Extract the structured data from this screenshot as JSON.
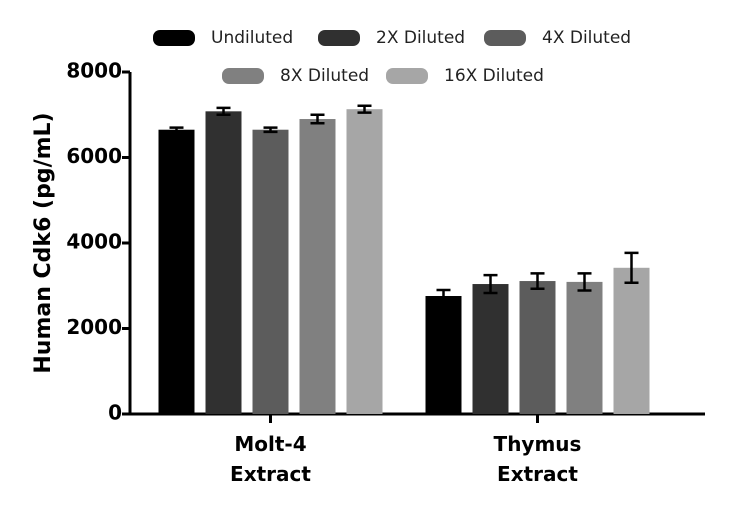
{
  "chart_data": {
    "type": "bar",
    "y_label": "Human Cdk6 (pg/mL)",
    "categories": [
      "Molt-4\nExtract",
      "Thymus\nExtract"
    ],
    "series": [
      {
        "name": "Undiluted",
        "color": "#000000",
        "values": [
          6650,
          2760
        ],
        "errors": [
          50,
          140
        ]
      },
      {
        "name": "2X Diluted",
        "color": "#303030",
        "values": [
          7080,
          3040
        ],
        "errors": [
          80,
          210
        ]
      },
      {
        "name": "4X Diluted",
        "color": "#5c5c5c",
        "values": [
          6650,
          3110
        ],
        "errors": [
          50,
          180
        ]
      },
      {
        "name": "8X Diluted",
        "color": "#808080",
        "values": [
          6900,
          3090
        ],
        "errors": [
          100,
          200
        ]
      },
      {
        "name": "16X Diluted",
        "color": "#a6a6a6",
        "values": [
          7130,
          3420
        ],
        "errors": [
          80,
          350
        ]
      }
    ],
    "ylim": [
      0,
      8000
    ],
    "yticks": [
      0,
      2000,
      4000,
      6000,
      8000
    ]
  }
}
